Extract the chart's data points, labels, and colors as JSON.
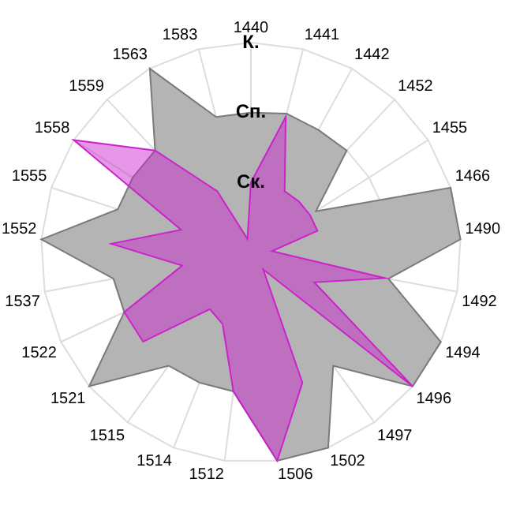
{
  "chart_data": {
    "type": "radar",
    "categories": [
      "1440",
      "1441",
      "1442",
      "1452",
      "1455",
      "1466",
      "1490",
      "1492",
      "1494",
      "1496",
      "1497",
      "1502",
      "1506",
      "1512",
      "1514",
      "1515",
      "1521",
      "1522",
      "1537",
      "1552",
      "1555",
      "1558",
      "1559",
      "1563",
      "1583"
    ],
    "series": [
      {
        "color": "#b4b4b4",
        "values": [
          2.0,
          2.05,
          2.0,
          2.0,
          1.1,
          3.0,
          3.0,
          2.0,
          3.0,
          3.0,
          2.0,
          3.0,
          3.0,
          2.0,
          2.0,
          2.0,
          3.0,
          2.0,
          2.0,
          3.0,
          2.0,
          2.0,
          2.0,
          3.0,
          2.0
        ]
      },
      {
        "color": "#cc22cc",
        "values": [
          1.0,
          2.0,
          1.0,
          1.0,
          1.0,
          1.0,
          0.3,
          1.95,
          1.0,
          3.0,
          0.3,
          2.0,
          3.0,
          2.0,
          1.1,
          1.0,
          2.0,
          2.0,
          1.0,
          2.0,
          1.05,
          3.0,
          2.0,
          1.0,
          0.2
        ]
      }
    ],
    "ylim": [
      0,
      3
    ],
    "yticks": [
      {
        "value": 1,
        "label": "Ск."
      },
      {
        "value": 2,
        "label": "Сп."
      },
      {
        "value": 3,
        "label": "К."
      }
    ],
    "grid": true,
    "legend": false
  }
}
